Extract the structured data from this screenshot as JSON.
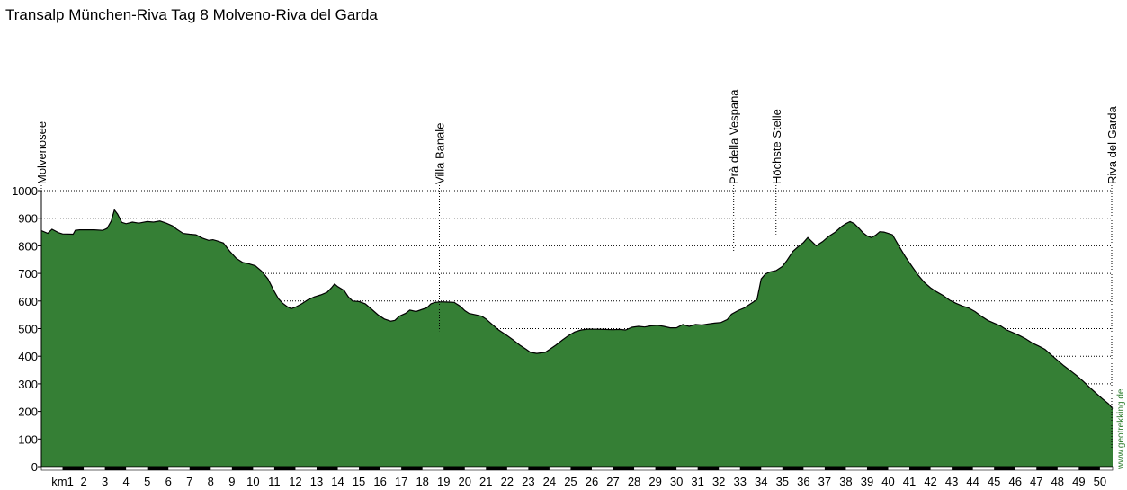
{
  "title": "Transalp München-Riva Tag 8 Molveno-Riva del Garda",
  "credit": "www.geotrekking.de",
  "colors": {
    "fill": "#357f35",
    "line": "#000000",
    "grid": "#000000",
    "credit": "#2e7d2e"
  },
  "chart_data": {
    "type": "area",
    "title": "Transalp München-Riva Tag 8 Molveno-Riva del Garda",
    "xunit": "km",
    "xlim": [
      0,
      50.6
    ],
    "ylim": [
      0,
      1000
    ],
    "yticks": [
      0,
      100,
      200,
      300,
      400,
      500,
      600,
      700,
      800,
      900,
      1000
    ],
    "xticks": [
      {
        "x": 1,
        "label": "km1"
      },
      {
        "x": 2,
        "label": "2"
      },
      {
        "x": 3,
        "label": "3"
      },
      {
        "x": 4,
        "label": "4"
      },
      {
        "x": 5,
        "label": "5"
      },
      {
        "x": 6,
        "label": "6"
      },
      {
        "x": 7,
        "label": "7"
      },
      {
        "x": 8,
        "label": "8"
      },
      {
        "x": 9,
        "label": "9"
      },
      {
        "x": 10,
        "label": "10"
      },
      {
        "x": 11,
        "label": "11"
      },
      {
        "x": 12,
        "label": "12"
      },
      {
        "x": 13,
        "label": "13"
      },
      {
        "x": 14,
        "label": "14"
      },
      {
        "x": 15,
        "label": "15"
      },
      {
        "x": 16,
        "label": "16"
      },
      {
        "x": 17,
        "label": "17"
      },
      {
        "x": 18,
        "label": "18"
      },
      {
        "x": 19,
        "label": "19"
      },
      {
        "x": 20,
        "label": "20"
      },
      {
        "x": 21,
        "label": "21"
      },
      {
        "x": 22,
        "label": "22"
      },
      {
        "x": 23,
        "label": "23"
      },
      {
        "x": 24,
        "label": "24"
      },
      {
        "x": 25,
        "label": "25"
      },
      {
        "x": 26,
        "label": "26"
      },
      {
        "x": 27,
        "label": "27"
      },
      {
        "x": 28,
        "label": "28"
      },
      {
        "x": 29,
        "label": "29"
      },
      {
        "x": 30,
        "label": "30"
      },
      {
        "x": 31,
        "label": "31"
      },
      {
        "x": 32,
        "label": "32"
      },
      {
        "x": 33,
        "label": "33"
      },
      {
        "x": 34,
        "label": "34"
      },
      {
        "x": 35,
        "label": "35"
      },
      {
        "x": 36,
        "label": "36"
      },
      {
        "x": 37,
        "label": "37"
      },
      {
        "x": 38,
        "label": "38"
      },
      {
        "x": 39,
        "label": "39"
      },
      {
        "x": 40,
        "label": "40"
      },
      {
        "x": 41,
        "label": "41"
      },
      {
        "x": 42,
        "label": "42"
      },
      {
        "x": 43,
        "label": "43"
      },
      {
        "x": 44,
        "label": "44"
      },
      {
        "x": 45,
        "label": "45"
      },
      {
        "x": 46,
        "label": "46"
      },
      {
        "x": 47,
        "label": "47"
      },
      {
        "x": 48,
        "label": "48"
      },
      {
        "x": 49,
        "label": "49"
      },
      {
        "x": 50,
        "label": "50"
      }
    ],
    "grid": true,
    "waypoints": [
      {
        "name": "Molvenosee",
        "km": 0,
        "elevation": 855
      },
      {
        "name": "Villa Banale",
        "km": 18.8,
        "elevation": 540
      },
      {
        "name": "Prà della Vespana",
        "km": 32.7,
        "elevation": 825
      },
      {
        "name": "Höchste Stelle",
        "km": 34.7,
        "elevation": 890
      },
      {
        "name": "Riva del Garda",
        "km": 50.6,
        "elevation": 105
      }
    ],
    "series": [
      {
        "points": [
          [
            0.0,
            855
          ],
          [
            0.3,
            845
          ],
          [
            0.5,
            860
          ],
          [
            0.8,
            848
          ],
          [
            1.0,
            843
          ],
          [
            1.5,
            842
          ],
          [
            1.6,
            856
          ],
          [
            1.8,
            858
          ],
          [
            2.5,
            858
          ],
          [
            2.9,
            856
          ],
          [
            3.1,
            863
          ],
          [
            3.3,
            890
          ],
          [
            3.45,
            930
          ],
          [
            3.6,
            915
          ],
          [
            3.8,
            885
          ],
          [
            4.0,
            880
          ],
          [
            4.3,
            886
          ],
          [
            4.6,
            882
          ],
          [
            5.0,
            888
          ],
          [
            5.3,
            886
          ],
          [
            5.6,
            890
          ],
          [
            5.9,
            882
          ],
          [
            6.2,
            872
          ],
          [
            6.4,
            860
          ],
          [
            6.7,
            845
          ],
          [
            7.0,
            842
          ],
          [
            7.3,
            840
          ],
          [
            7.6,
            828
          ],
          [
            7.9,
            820
          ],
          [
            8.1,
            822
          ],
          [
            8.3,
            818
          ],
          [
            8.6,
            810
          ],
          [
            8.9,
            780
          ],
          [
            9.2,
            755
          ],
          [
            9.5,
            740
          ],
          [
            9.8,
            735
          ],
          [
            10.1,
            728
          ],
          [
            10.4,
            708
          ],
          [
            10.7,
            680
          ],
          [
            11.0,
            635
          ],
          [
            11.2,
            608
          ],
          [
            11.4,
            592
          ],
          [
            11.6,
            580
          ],
          [
            11.8,
            572
          ],
          [
            12.0,
            578
          ],
          [
            12.3,
            590
          ],
          [
            12.6,
            605
          ],
          [
            12.9,
            615
          ],
          [
            13.2,
            622
          ],
          [
            13.5,
            632
          ],
          [
            13.7,
            648
          ],
          [
            13.85,
            662
          ],
          [
            14.0,
            652
          ],
          [
            14.3,
            638
          ],
          [
            14.5,
            615
          ],
          [
            14.7,
            600
          ],
          [
            15.0,
            598
          ],
          [
            15.3,
            590
          ],
          [
            15.6,
            570
          ],
          [
            15.9,
            550
          ],
          [
            16.2,
            535
          ],
          [
            16.5,
            527
          ],
          [
            16.7,
            530
          ],
          [
            16.9,
            545
          ],
          [
            17.2,
            555
          ],
          [
            17.4,
            567
          ],
          [
            17.7,
            562
          ],
          [
            18.0,
            570
          ],
          [
            18.2,
            575
          ],
          [
            18.4,
            590
          ],
          [
            18.6,
            595
          ],
          [
            18.9,
            597
          ],
          [
            19.2,
            596
          ],
          [
            19.5,
            595
          ],
          [
            19.8,
            580
          ],
          [
            20.0,
            565
          ],
          [
            20.2,
            555
          ],
          [
            20.5,
            550
          ],
          [
            20.8,
            545
          ],
          [
            21.0,
            535
          ],
          [
            21.3,
            515
          ],
          [
            21.6,
            495
          ],
          [
            22.0,
            475
          ],
          [
            22.3,
            458
          ],
          [
            22.6,
            440
          ],
          [
            22.9,
            425
          ],
          [
            23.1,
            414
          ],
          [
            23.4,
            410
          ],
          [
            23.8,
            414
          ],
          [
            24.0,
            424
          ],
          [
            24.3,
            440
          ],
          [
            24.6,
            458
          ],
          [
            24.9,
            475
          ],
          [
            25.2,
            488
          ],
          [
            25.5,
            495
          ],
          [
            25.8,
            498
          ],
          [
            26.2,
            498
          ],
          [
            26.6,
            497
          ],
          [
            27.0,
            496
          ],
          [
            27.3,
            497
          ],
          [
            27.6,
            495
          ],
          [
            27.9,
            505
          ],
          [
            28.2,
            508
          ],
          [
            28.5,
            506
          ],
          [
            28.8,
            510
          ],
          [
            29.1,
            512
          ],
          [
            29.4,
            508
          ],
          [
            29.7,
            503
          ],
          [
            30.0,
            503
          ],
          [
            30.3,
            515
          ],
          [
            30.6,
            508
          ],
          [
            30.9,
            515
          ],
          [
            31.2,
            513
          ],
          [
            31.5,
            517
          ],
          [
            31.8,
            520
          ],
          [
            32.1,
            522
          ],
          [
            32.4,
            533
          ],
          [
            32.6,
            552
          ],
          [
            32.9,
            565
          ],
          [
            33.2,
            575
          ],
          [
            33.5,
            590
          ],
          [
            33.8,
            605
          ],
          [
            34.0,
            680
          ],
          [
            34.2,
            698
          ],
          [
            34.4,
            705
          ],
          [
            34.7,
            710
          ],
          [
            35.0,
            725
          ],
          [
            35.2,
            745
          ],
          [
            35.5,
            780
          ],
          [
            35.8,
            800
          ],
          [
            36.0,
            812
          ],
          [
            36.2,
            830
          ],
          [
            36.4,
            815
          ],
          [
            36.6,
            800
          ],
          [
            36.9,
            815
          ],
          [
            37.2,
            835
          ],
          [
            37.5,
            850
          ],
          [
            37.8,
            870
          ],
          [
            38.0,
            880
          ],
          [
            38.2,
            888
          ],
          [
            38.4,
            880
          ],
          [
            38.6,
            865
          ],
          [
            38.8,
            848
          ],
          [
            39.0,
            836
          ],
          [
            39.2,
            830
          ],
          [
            39.4,
            838
          ],
          [
            39.6,
            851
          ],
          [
            39.8,
            850
          ],
          [
            40.0,
            845
          ],
          [
            40.2,
            840
          ],
          [
            40.5,
            800
          ],
          [
            40.8,
            762
          ],
          [
            41.1,
            728
          ],
          [
            41.4,
            695
          ],
          [
            41.7,
            668
          ],
          [
            42.0,
            648
          ],
          [
            42.3,
            633
          ],
          [
            42.6,
            620
          ],
          [
            42.9,
            603
          ],
          [
            43.2,
            592
          ],
          [
            43.5,
            582
          ],
          [
            43.8,
            575
          ],
          [
            44.1,
            562
          ],
          [
            44.4,
            545
          ],
          [
            44.7,
            530
          ],
          [
            45.0,
            520
          ],
          [
            45.3,
            510
          ],
          [
            45.6,
            495
          ],
          [
            45.9,
            485
          ],
          [
            46.2,
            475
          ],
          [
            46.5,
            463
          ],
          [
            46.8,
            448
          ],
          [
            47.1,
            437
          ],
          [
            47.4,
            425
          ],
          [
            47.7,
            405
          ],
          [
            48.0,
            385
          ],
          [
            48.3,
            365
          ],
          [
            48.6,
            348
          ],
          [
            48.9,
            330
          ],
          [
            49.2,
            310
          ],
          [
            49.5,
            288
          ],
          [
            49.8,
            267
          ],
          [
            50.1,
            247
          ],
          [
            50.4,
            228
          ],
          [
            50.6,
            210
          ]
        ]
      }
    ]
  }
}
